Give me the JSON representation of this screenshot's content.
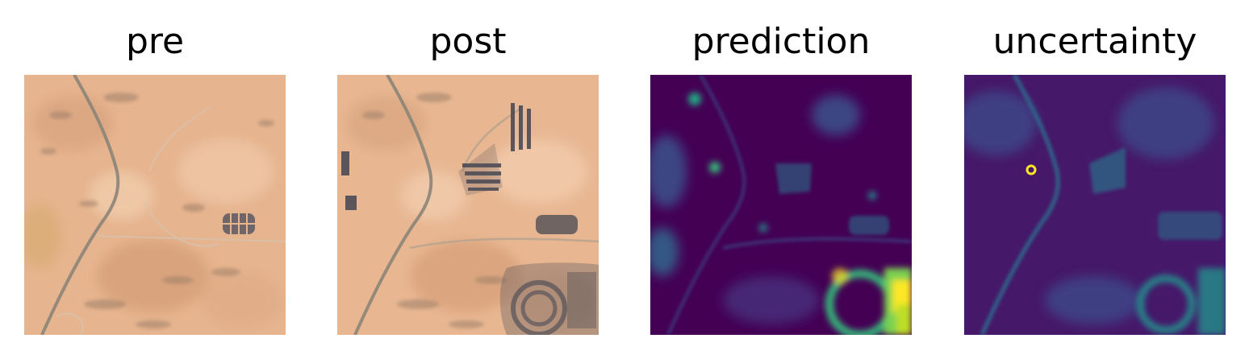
{
  "figure": {
    "panels": [
      {
        "title": "pre",
        "kind": "satellite-before"
      },
      {
        "title": "post",
        "kind": "satellite-after"
      },
      {
        "title": "prediction",
        "kind": "heatmap"
      },
      {
        "title": "uncertainty",
        "kind": "heatmap"
      }
    ],
    "colors": {
      "sand": "#e6b48e",
      "road": "#8c8478",
      "building": "#4b4b55",
      "viridis_low": "#440154",
      "viridis_mid": "#2a788e",
      "viridis_green": "#22a884",
      "viridis_high": "#fde725"
    }
  }
}
